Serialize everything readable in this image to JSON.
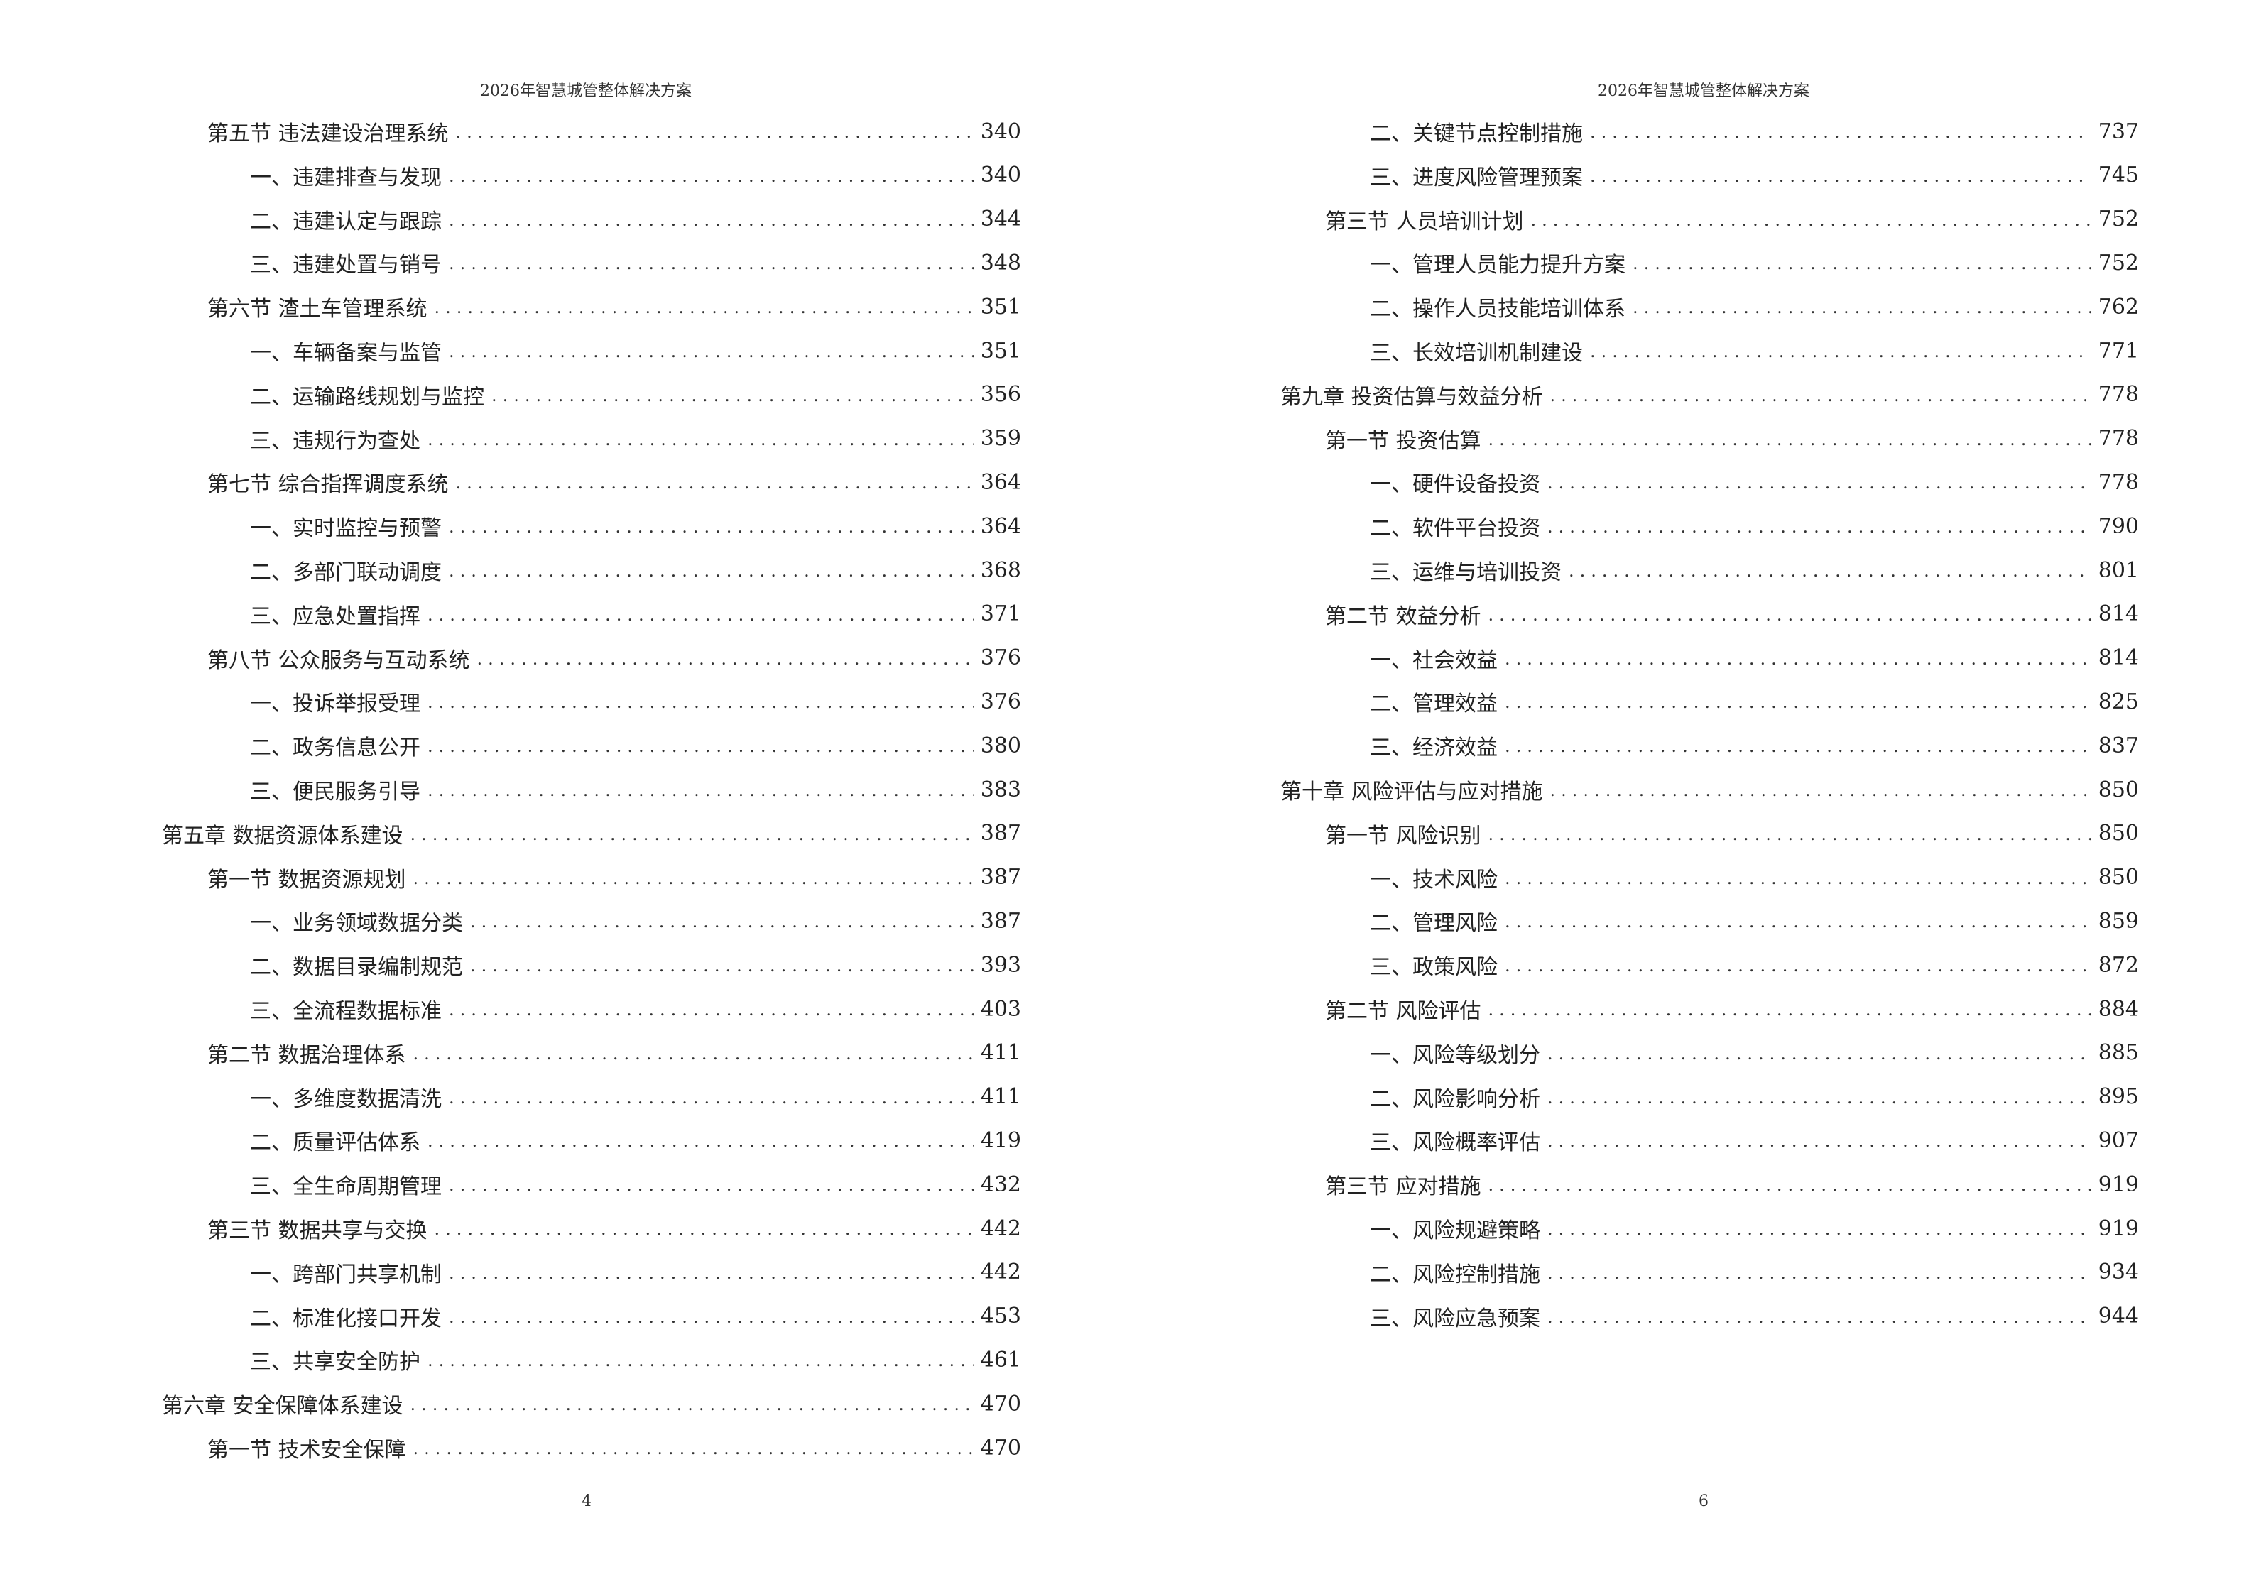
{
  "left_page": {
    "header": "2026年智慧城管整体解决方案",
    "page_number": "4",
    "entries": [
      {
        "level": 2,
        "title": "第五节  违法建设治理系统",
        "page": "340"
      },
      {
        "level": 3,
        "title": "一、违建排查与发现",
        "page": "340"
      },
      {
        "level": 3,
        "title": "二、违建认定与跟踪",
        "page": "344"
      },
      {
        "level": 3,
        "title": "三、违建处置与销号",
        "page": "348"
      },
      {
        "level": 2,
        "title": "第六节  渣土车管理系统",
        "page": "351"
      },
      {
        "level": 3,
        "title": "一、车辆备案与监管",
        "page": "351"
      },
      {
        "level": 3,
        "title": "二、运输路线规划与监控",
        "page": "356"
      },
      {
        "level": 3,
        "title": "三、违规行为查处",
        "page": "359"
      },
      {
        "level": 2,
        "title": "第七节  综合指挥调度系统",
        "page": "364"
      },
      {
        "level": 3,
        "title": "一、实时监控与预警",
        "page": "364"
      },
      {
        "level": 3,
        "title": "二、多部门联动调度",
        "page": "368"
      },
      {
        "level": 3,
        "title": "三、应急处置指挥",
        "page": "371"
      },
      {
        "level": 2,
        "title": "第八节  公众服务与互动系统",
        "page": "376"
      },
      {
        "level": 3,
        "title": "一、投诉举报受理",
        "page": "376"
      },
      {
        "level": 3,
        "title": "二、政务信息公开",
        "page": "380"
      },
      {
        "level": 3,
        "title": "三、便民服务引导",
        "page": "383"
      },
      {
        "level": 1,
        "title": "第五章  数据资源体系建设",
        "page": "387"
      },
      {
        "level": 2,
        "title": "第一节  数据资源规划",
        "page": "387"
      },
      {
        "level": 3,
        "title": "一、业务领域数据分类",
        "page": "387"
      },
      {
        "level": 3,
        "title": "二、数据目录编制规范",
        "page": "393"
      },
      {
        "level": 3,
        "title": "三、全流程数据标准",
        "page": "403"
      },
      {
        "level": 2,
        "title": "第二节  数据治理体系",
        "page": "411"
      },
      {
        "level": 3,
        "title": "一、多维度数据清洗",
        "page": "411"
      },
      {
        "level": 3,
        "title": "二、质量评估体系",
        "page": "419"
      },
      {
        "level": 3,
        "title": "三、全生命周期管理",
        "page": "432"
      },
      {
        "level": 2,
        "title": "第三节  数据共享与交换",
        "page": "442"
      },
      {
        "level": 3,
        "title": "一、跨部门共享机制",
        "page": "442"
      },
      {
        "level": 3,
        "title": "二、标准化接口开发",
        "page": "453"
      },
      {
        "level": 3,
        "title": "三、共享安全防护",
        "page": "461"
      },
      {
        "level": 1,
        "title": "第六章  安全保障体系建设",
        "page": "470"
      },
      {
        "level": 2,
        "title": "第一节  技术安全保障",
        "page": "470"
      }
    ]
  },
  "right_page": {
    "header": "2026年智慧城管整体解决方案",
    "page_number": "6",
    "entries": [
      {
        "level": 3,
        "title": "二、关键节点控制措施",
        "page": "737"
      },
      {
        "level": 3,
        "title": "三、进度风险管理预案",
        "page": "745"
      },
      {
        "level": 2,
        "title": "第三节  人员培训计划",
        "page": "752"
      },
      {
        "level": 3,
        "title": "一、管理人员能力提升方案",
        "page": "752"
      },
      {
        "level": 3,
        "title": "二、操作人员技能培训体系",
        "page": "762"
      },
      {
        "level": 3,
        "title": "三、长效培训机制建设",
        "page": "771"
      },
      {
        "level": 1,
        "title": "第九章  投资估算与效益分析",
        "page": "778"
      },
      {
        "level": 2,
        "title": "第一节  投资估算",
        "page": "778"
      },
      {
        "level": 3,
        "title": "一、硬件设备投资",
        "page": "778"
      },
      {
        "level": 3,
        "title": "二、软件平台投资",
        "page": "790"
      },
      {
        "level": 3,
        "title": "三、运维与培训投资",
        "page": "801"
      },
      {
        "level": 2,
        "title": "第二节  效益分析",
        "page": "814"
      },
      {
        "level": 3,
        "title": "一、社会效益",
        "page": "814"
      },
      {
        "level": 3,
        "title": "二、管理效益",
        "page": "825"
      },
      {
        "level": 3,
        "title": "三、经济效益",
        "page": "837"
      },
      {
        "level": 1,
        "title": "第十章  风险评估与应对措施",
        "page": "850"
      },
      {
        "level": 2,
        "title": "第一节  风险识别",
        "page": "850"
      },
      {
        "level": 3,
        "title": "一、技术风险",
        "page": "850"
      },
      {
        "level": 3,
        "title": "二、管理风险",
        "page": "859"
      },
      {
        "level": 3,
        "title": "三、政策风险",
        "page": "872"
      },
      {
        "level": 2,
        "title": "第二节  风险评估",
        "page": "884"
      },
      {
        "level": 3,
        "title": "一、风险等级划分",
        "page": "885"
      },
      {
        "level": 3,
        "title": "二、风险影响分析",
        "page": "895"
      },
      {
        "level": 3,
        "title": "三、风险概率评估",
        "page": "907"
      },
      {
        "level": 2,
        "title": "第三节  应对措施",
        "page": "919"
      },
      {
        "level": 3,
        "title": "一、风险规避策略",
        "page": "919"
      },
      {
        "level": 3,
        "title": "二、风险控制措施",
        "page": "934"
      },
      {
        "level": 3,
        "title": "三、风险应急预案",
        "page": "944"
      }
    ]
  }
}
